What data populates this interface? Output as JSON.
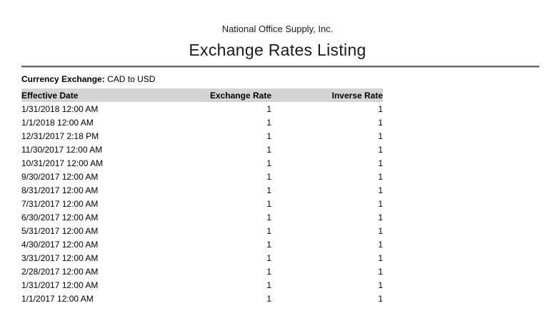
{
  "report": {
    "company": "National Office Supply, Inc.",
    "title": "Exchange Rates Listing",
    "filter_label": "Currency Exchange:",
    "filter_value": "CAD to USD"
  },
  "table": {
    "columns": [
      "Effective Date",
      "Exchange Rate",
      "Inverse Rate"
    ],
    "rows": [
      [
        "1/31/2018 12:00 AM",
        "1",
        "1"
      ],
      [
        "1/1/2018 12:00 AM",
        "1",
        "1"
      ],
      [
        "12/31/2017 2:18 PM",
        "1",
        "1"
      ],
      [
        "11/30/2017 12:00 AM",
        "1",
        "1"
      ],
      [
        "10/31/2017 12:00 AM",
        "1",
        "1"
      ],
      [
        "9/30/2017 12:00 AM",
        "1",
        "1"
      ],
      [
        "8/31/2017 12:00 AM",
        "1",
        "1"
      ],
      [
        "7/31/2017 12:00 AM",
        "1",
        "1"
      ],
      [
        "6/30/2017 12:00 AM",
        "1",
        "1"
      ],
      [
        "5/31/2017 12:00 AM",
        "1",
        "1"
      ],
      [
        "4/30/2017 12:00 AM",
        "1",
        "1"
      ],
      [
        "3/31/2017 12:00 AM",
        "1",
        "1"
      ],
      [
        "2/28/2017 12:00 AM",
        "1",
        "1"
      ],
      [
        "1/31/2017 12:00 AM",
        "1",
        "1"
      ],
      [
        "1/1/2017 12:00 AM",
        "1",
        "1"
      ]
    ]
  },
  "colors": {
    "header_bg": "#d4d4d4",
    "rule_dark": "#6b6b6b",
    "rule_light": "#b0b0b0",
    "text": "#000000"
  }
}
